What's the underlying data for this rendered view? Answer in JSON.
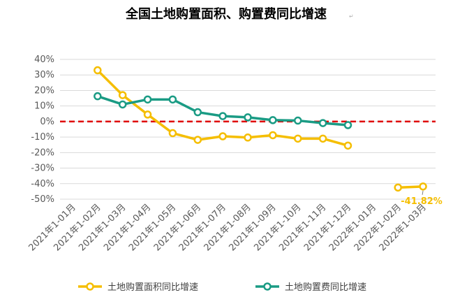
{
  "chart_data": {
    "type": "line",
    "title": "全国土地购置面积、购置费同比增速",
    "title_mark": "↵",
    "categories": [
      "2021年1-01月",
      "2021年1-02月",
      "2021年1-03月",
      "2021年1-04月",
      "2021年1-05月",
      "2021年1-06月",
      "2021年1-07月",
      "2021年1-08月",
      "2021年1-09月",
      "2021年1-10月",
      "2021年1-11月",
      "2021年1-12月",
      "2022年1-01月",
      "2022年1-02月",
      "2022年1-03月"
    ],
    "y_ticks": [
      "40%",
      "30%",
      "20%",
      "10%",
      "0%",
      "-10%",
      "-20%",
      "-30%",
      "-40%",
      "-50%"
    ],
    "ylim": [
      -50,
      40
    ],
    "reference_line": 0,
    "series": [
      {
        "name": "土地购置面积同比增速",
        "color": "#f5be00",
        "values": [
          null,
          33.0,
          17.0,
          4.5,
          -7.5,
          -11.8,
          -9.5,
          -10.3,
          -8.8,
          -11.0,
          -11.0,
          -15.5,
          null,
          -42.5,
          -41.82
        ]
      },
      {
        "name": "土地购置费同比增速",
        "color": "#1a9b84",
        "values": [
          null,
          16.3,
          11.0,
          14.2,
          14.2,
          6.0,
          3.5,
          2.7,
          0.9,
          0.6,
          -1.0,
          -2.3,
          null,
          null,
          null
        ]
      }
    ],
    "annotations": [
      {
        "series": 0,
        "index": 14,
        "text": "-41.82%"
      }
    ],
    "reference_color": "#e00000",
    "grid_color": "#d9d9d9"
  }
}
